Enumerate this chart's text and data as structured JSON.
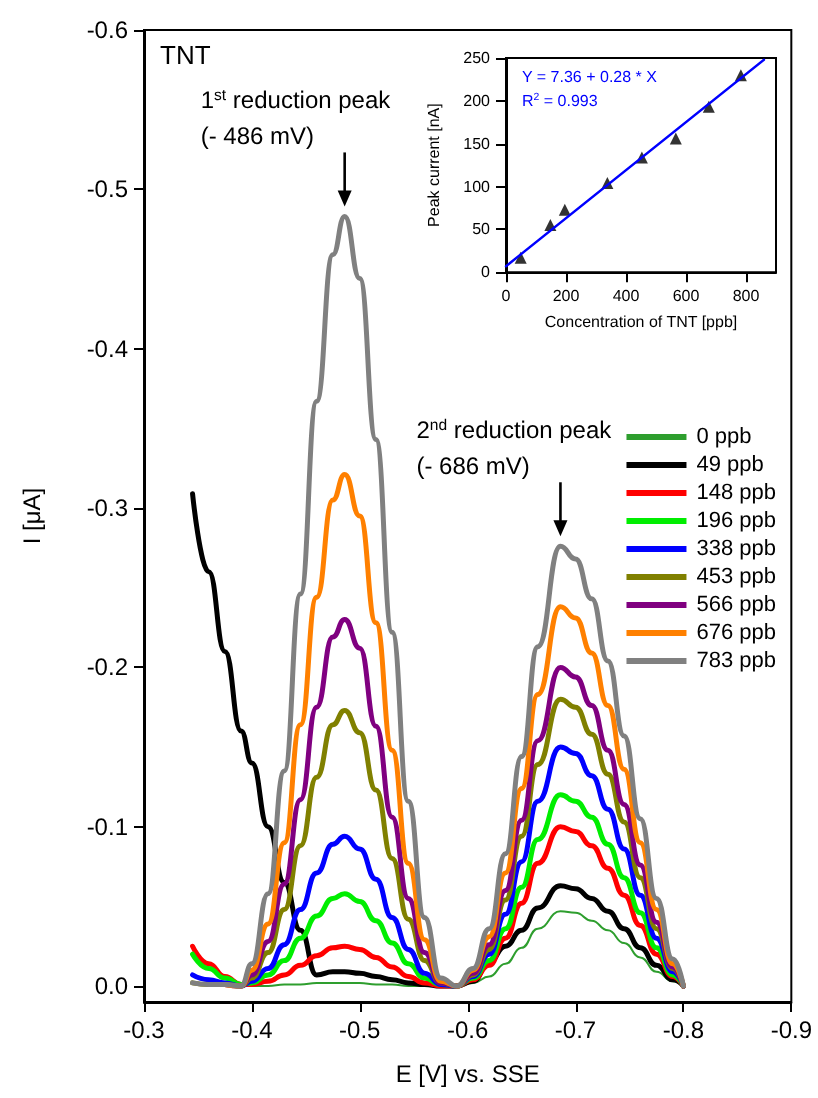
{
  "chart_data": [
    {
      "type": "line",
      "xlabel": "E [V] vs. SSE",
      "ylabel": "I [μA]",
      "xlim": [
        -0.3,
        -0.9
      ],
      "xticks": [
        -0.3,
        -0.4,
        -0.5,
        -0.6,
        -0.7,
        -0.8,
        -0.9
      ],
      "ylim": [
        0.01,
        -0.6
      ],
      "yticks": [
        {
          "value": 0,
          "label": "0.0"
        },
        -0.1,
        -0.2,
        -0.3,
        -0.4,
        -0.5,
        -0.6
      ],
      "legend": "right",
      "marker": "none",
      "annotations": [
        "TNT",
        {
          "text": "1$^{st}$ reduction peak\n(- 486 mV)",
          "x": -0.486,
          "y": -0.483
        },
        {
          "text": "2$^{nd}$ reduction peak\n(- 686 mV)",
          "x": -0.686,
          "y": -0.276
        }
      ],
      "x": [
        -0.345,
        -0.36,
        -0.375,
        -0.39,
        -0.4,
        -0.415,
        -0.43,
        -0.445,
        -0.46,
        -0.475,
        -0.486,
        -0.5,
        -0.515,
        -0.53,
        -0.545,
        -0.56,
        -0.575,
        -0.59,
        -0.605,
        -0.62,
        -0.635,
        -0.65,
        -0.665,
        -0.686,
        -0.7,
        -0.715,
        -0.73,
        -0.745,
        -0.76,
        -0.775,
        -0.79,
        -0.8
      ],
      "series": [
        {
          "name": "0 ppb",
          "color": "#2e9e2e",
          "values": [
            null,
            null,
            -0.001,
            0,
            0,
            0,
            -0.001,
            -0.001,
            -0.002,
            -0.002,
            -0.002,
            -0.002,
            -0.001,
            -0.001,
            0,
            0,
            0,
            0,
            -0.002,
            -0.006,
            -0.014,
            -0.024,
            -0.036,
            -0.047,
            -0.046,
            -0.041,
            -0.035,
            -0.027,
            -0.018,
            -0.009,
            -0.003,
            0
          ]
        },
        {
          "name": "49 ppb",
          "color": "#000000",
          "values": [
            -0.309,
            -0.26,
            -0.21,
            -0.16,
            -0.14,
            -0.1,
            -0.065,
            -0.035,
            -0.007,
            -0.009,
            -0.009,
            -0.008,
            -0.006,
            -0.004,
            -0.002,
            -0.001,
            0,
            0,
            -0.003,
            -0.015,
            -0.025,
            -0.035,
            -0.049,
            -0.063,
            -0.061,
            -0.055,
            -0.047,
            -0.036,
            -0.024,
            -0.013,
            -0.004,
            0
          ]
        },
        {
          "name": "148 ppb",
          "color": "#ff0000",
          "values": [
            -0.025,
            -0.014,
            -0.006,
            -0.001,
            -0.001,
            -0.003,
            -0.007,
            -0.013,
            -0.019,
            -0.024,
            -0.025,
            -0.023,
            -0.018,
            -0.012,
            -0.006,
            -0.002,
            0,
            0,
            -0.004,
            -0.013,
            -0.03,
            -0.052,
            -0.077,
            -0.1,
            -0.097,
            -0.088,
            -0.074,
            -0.057,
            -0.038,
            -0.02,
            -0.006,
            0
          ]
        },
        {
          "name": "196 ppb",
          "color": "#00ee00",
          "values": [
            -0.02,
            -0.011,
            -0.005,
            -0.001,
            -0.002,
            -0.007,
            -0.016,
            -0.03,
            -0.044,
            -0.055,
            -0.058,
            -0.053,
            -0.041,
            -0.027,
            -0.014,
            -0.005,
            -0.001,
            0,
            -0.005,
            -0.016,
            -0.036,
            -0.062,
            -0.092,
            -0.12,
            -0.116,
            -0.106,
            -0.089,
            -0.068,
            -0.046,
            -0.024,
            -0.007,
            0
          ]
        },
        {
          "name": "338 ppb",
          "color": "#0000ff",
          "values": [
            -0.007,
            -0.004,
            -0.002,
            0,
            -0.003,
            -0.011,
            -0.026,
            -0.048,
            -0.071,
            -0.089,
            -0.094,
            -0.086,
            -0.067,
            -0.043,
            -0.023,
            -0.008,
            -0.001,
            0,
            -0.006,
            -0.02,
            -0.045,
            -0.078,
            -0.116,
            -0.15,
            -0.146,
            -0.132,
            -0.111,
            -0.086,
            -0.057,
            -0.03,
            -0.009,
            0
          ]
        },
        {
          "name": "453 ppb",
          "color": "#808000",
          "values": [
            -0.002,
            -0.001,
            -0.001,
            0,
            -0.005,
            -0.021,
            -0.048,
            -0.088,
            -0.131,
            -0.164,
            -0.173,
            -0.159,
            -0.123,
            -0.08,
            -0.042,
            -0.016,
            -0.002,
            0,
            -0.007,
            -0.023,
            -0.054,
            -0.094,
            -0.139,
            -0.18,
            -0.175,
            -0.158,
            -0.133,
            -0.103,
            -0.068,
            -0.036,
            -0.011,
            0
          ]
        },
        {
          "name": "566 ppb",
          "color": "#800080",
          "values": [
            null,
            null,
            -0.001,
            0,
            -0.007,
            -0.028,
            -0.064,
            -0.117,
            -0.175,
            -0.219,
            -0.23,
            -0.212,
            -0.163,
            -0.106,
            -0.055,
            -0.021,
            -0.002,
            0,
            -0.008,
            -0.026,
            -0.06,
            -0.104,
            -0.154,
            -0.2,
            -0.194,
            -0.176,
            -0.148,
            -0.114,
            -0.076,
            -0.04,
            -0.012,
            0
          ]
        },
        {
          "name": "676 ppb",
          "color": "#ff8000",
          "values": [
            null,
            null,
            -0.001,
            0,
            -0.01,
            -0.039,
            -0.09,
            -0.164,
            -0.244,
            -0.305,
            -0.321,
            -0.295,
            -0.228,
            -0.148,
            -0.077,
            -0.029,
            -0.003,
            0,
            -0.01,
            -0.031,
            -0.071,
            -0.124,
            -0.183,
            -0.238,
            -0.231,
            -0.209,
            -0.176,
            -0.136,
            -0.09,
            -0.048,
            -0.014,
            0
          ]
        },
        {
          "name": "783 ppb",
          "color": "#808080",
          "values": [
            -0.002,
            -0.001,
            -0.001,
            0,
            -0.014,
            -0.058,
            -0.135,
            -0.246,
            -0.367,
            -0.459,
            -0.483,
            -0.444,
            -0.343,
            -0.222,
            -0.116,
            -0.043,
            -0.005,
            0,
            -0.011,
            -0.036,
            -0.083,
            -0.144,
            -0.213,
            -0.276,
            -0.268,
            -0.243,
            -0.204,
            -0.157,
            -0.105,
            -0.055,
            -0.017,
            0
          ]
        }
      ]
    },
    {
      "type": "scatter",
      "xlabel": "Concentration of TNT [ppb]",
      "ylabel": "Peak current [nA]",
      "xlim": [
        0,
        900
      ],
      "xticks": [
        0,
        200,
        400,
        600,
        800
      ],
      "ylim": [
        0,
        250
      ],
      "yticks": [
        0,
        50,
        100,
        150,
        200,
        250
      ],
      "marker": "triangle",
      "annotations": [
        "Y = 7.36 + 0.28 * X",
        "R$^{2}$ = 0.993"
      ],
      "series": [
        {
          "color": "#000000",
          "x": [
            49,
            148,
            196,
            338,
            453,
            566,
            676,
            783
          ],
          "values": [
            17,
            55,
            73,
            104,
            134,
            156,
            193,
            230
          ]
        },
        {
          "type": "line",
          "marker": "none",
          "color": "#0000ff",
          "x": [
            0,
            860
          ],
          "values": [
            7,
            248
          ]
        }
      ]
    }
  ]
}
